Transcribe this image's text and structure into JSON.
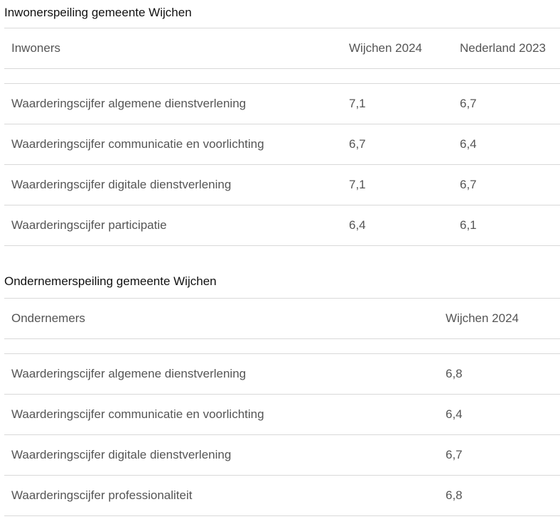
{
  "inwoners": {
    "caption": "Inwonerspeiling gemeente Wijchen",
    "headers": [
      "Inwoners",
      "Wijchen 2024",
      "Nederland 2023"
    ],
    "rows": [
      [
        "Waarderingscijfer algemene dienstverlening",
        "7,1",
        "6,7"
      ],
      [
        "Waarderingscijfer communicatie en voorlichting",
        "6,7",
        "6,4"
      ],
      [
        "Waarderingscijfer digitale dienstverlening",
        "7,1",
        "6,7"
      ],
      [
        "Waarderingscijfer participatie",
        "6,4",
        "6,1"
      ]
    ]
  },
  "ondernemers": {
    "caption": "Ondernemerspeiling gemeente Wijchen",
    "headers": [
      "Ondernemers",
      "Wijchen 2024"
    ],
    "rows": [
      [
        "Waarderingscijfer algemene dienstverlening",
        "6,8"
      ],
      [
        "Waarderingscijfer communicatie en voorlichting",
        "6,4"
      ],
      [
        "Waarderingscijfer digitale dienstverlening",
        "6,7"
      ],
      [
        "Waarderingscijfer professionaliteit",
        "6,8"
      ]
    ]
  }
}
